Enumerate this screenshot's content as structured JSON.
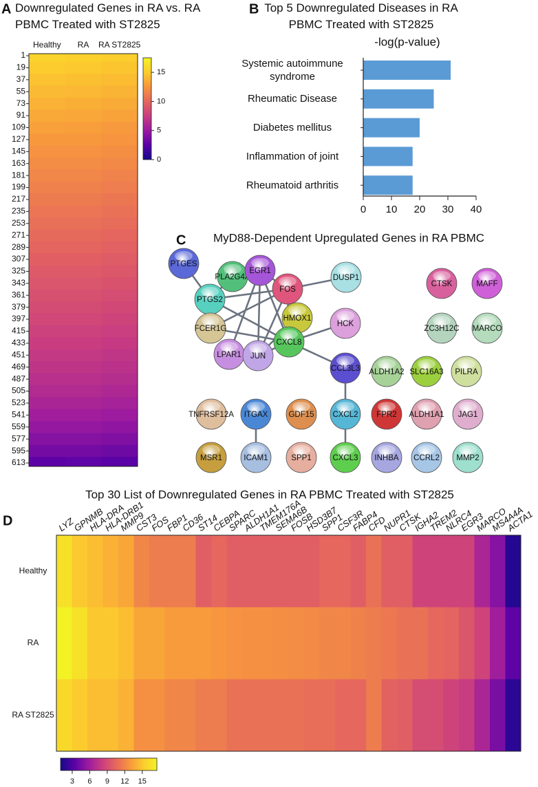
{
  "chart_data": [
    {
      "type": "heatmap",
      "label": "A",
      "title": "Downregulated Genes in RA vs. RA PBMC Treated with ST2825",
      "series": [
        {
          "name": "Healthy",
          "values": [
            15.5,
            15,
            14.6,
            14.2,
            13.8,
            13.4,
            13,
            12.6,
            12.3,
            12,
            11.7,
            11.4,
            11.1,
            10.8,
            10.5,
            10.2,
            9.9,
            9.6,
            9.3,
            9,
            8.7,
            8.4,
            8.1,
            7.8,
            7.5,
            7.2,
            6.9,
            6.6,
            6.2,
            5.8,
            5.3,
            4.8,
            4.2,
            3.5,
            2.6
          ]
        },
        {
          "name": "RA",
          "values": [
            15.3,
            14.9,
            14.5,
            14.1,
            13.7,
            13.3,
            12.9,
            12.6,
            12.3,
            12,
            11.7,
            11.4,
            11.1,
            10.8,
            10.5,
            10.2,
            9.9,
            9.6,
            9.3,
            9,
            8.7,
            8.4,
            8.1,
            7.8,
            7.5,
            7.2,
            6.9,
            6.6,
            6.2,
            5.8,
            5.3,
            4.8,
            4.2,
            3.5,
            2.7
          ]
        },
        {
          "name": "RA ST2825",
          "values": [
            15.2,
            14.7,
            14.3,
            13.9,
            13.5,
            13.1,
            12.7,
            12.4,
            12.1,
            11.8,
            11.5,
            11.2,
            10.9,
            10.6,
            10.3,
            10,
            9.7,
            9.4,
            9.1,
            8.8,
            8.5,
            8.2,
            7.9,
            7.6,
            7.3,
            7,
            6.7,
            6.4,
            6,
            5.6,
            5.1,
            4.6,
            4,
            3.3,
            2.5
          ]
        }
      ],
      "ylim": [
        1,
        613
      ],
      "yticks": [
        1,
        19,
        37,
        55,
        73,
        91,
        109,
        127,
        145,
        163,
        181,
        199,
        217,
        235,
        253,
        271,
        289,
        307,
        325,
        343,
        361,
        379,
        397,
        415,
        433,
        451,
        469,
        487,
        505,
        523,
        541,
        559,
        577,
        595,
        613
      ],
      "zlim": [
        0,
        17.5
      ],
      "zticks": [
        0,
        5,
        10,
        15
      ],
      "colormap": [
        "#150a8c",
        "#5a02a6",
        "#9a1aa0",
        "#c93d80",
        "#e5665e",
        "#f7963e",
        "#fccb2e",
        "#f2f224"
      ]
    },
    {
      "type": "barh",
      "label": "B",
      "title": "Top 5 Downregulated Diseases in RA PBMC Treated with ST2825",
      "xlabel": "-log(p-value)",
      "categories": [
        "Systemic autoimmune syndrome",
        "Rheumatic Disease",
        "Diabetes mellitus",
        "Inflammation of joint",
        "Rheumatoid arthritis"
      ],
      "values": [
        31,
        25,
        20,
        17.5,
        17.5
      ],
      "color": "#5b9bd5",
      "xlim": [
        0,
        40
      ],
      "xticks": [
        0,
        10,
        20,
        30,
        40
      ]
    },
    {
      "type": "heatmap",
      "label": "D",
      "title": "Top 30 List of Downregulated Genes in RA PBMC Treated with ST2825",
      "categories": [
        "LYZ",
        "GPNMB",
        "HLA-DRA",
        "HLA-DRB1",
        "MMP9",
        "CST3",
        "FOS",
        "FBP1",
        "CD36",
        "ST14",
        "CEBPA",
        "SPARC",
        "ALDH1A1",
        "TMEM176A",
        "SEMA6B",
        "FOSB",
        "HSD3B7",
        "SPP1",
        "CSF3R",
        "FABP4",
        "CFD",
        "NUPR1",
        "CTSK",
        "IGHA2",
        "TREM2",
        "NLRC4",
        "EGR3",
        "MARCO",
        "MS4A4A",
        "ACTA1"
      ],
      "series": [
        {
          "name": "Healthy",
          "values": [
            16.5,
            15,
            14.5,
            14,
            13.5,
            12,
            11.5,
            11.5,
            11.5,
            10,
            10.5,
            10,
            10,
            10,
            10,
            10,
            10,
            10.5,
            10.5,
            10,
            11,
            10,
            10,
            8.5,
            8.5,
            8.5,
            8.5,
            6.5,
            5,
            1.5
          ]
        },
        {
          "name": "RA",
          "values": [
            17.5,
            16.5,
            15,
            15,
            14.5,
            13.5,
            13.5,
            13,
            13,
            13,
            12.8,
            12.6,
            12.5,
            12.5,
            12.4,
            12.3,
            12.2,
            12,
            12,
            11.8,
            11.5,
            11.3,
            11,
            11,
            10.5,
            10.3,
            9.5,
            8.5,
            6,
            3.5
          ]
        },
        {
          "name": "RA ST2825",
          "values": [
            16,
            15.2,
            14.5,
            14.5,
            14,
            12.5,
            12.5,
            12,
            12,
            11.5,
            11.5,
            11,
            11,
            11,
            11,
            11,
            10.8,
            10.8,
            10.5,
            10.5,
            11.5,
            10.2,
            10,
            9,
            9,
            8.5,
            8,
            6.5,
            4.5,
            1.8
          ]
        }
      ],
      "zlim": [
        1,
        17.5
      ],
      "zticks": [
        3,
        6,
        9,
        12,
        15
      ],
      "colormap": [
        "#150a8c",
        "#5a02a6",
        "#9a1aa0",
        "#c93d80",
        "#e5665e",
        "#f7963e",
        "#fccb2e",
        "#f2f224"
      ]
    }
  ],
  "network": {
    "label": "C",
    "title": "MyD88-Dependent Upregulated Genes in RA PBMC",
    "nodes": [
      {
        "label": "PTGES",
        "color": "#5a68d8"
      },
      {
        "label": "PLA2G4A",
        "color": "#52c07a"
      },
      {
        "label": "EGR1",
        "color": "#a555d8"
      },
      {
        "label": "FOS",
        "color": "#e0557c"
      },
      {
        "label": "DUSP1",
        "color": "#a8e0e4"
      },
      {
        "label": "CTSK",
        "color": "#d8609c"
      },
      {
        "label": "MAFF",
        "color": "#cf60d8"
      },
      {
        "label": "PTGS2",
        "color": "#58d0c0"
      },
      {
        "label": "HMOX1",
        "color": "#c8c83c"
      },
      {
        "label": "HCK",
        "color": "#dca0dc"
      },
      {
        "label": "ZC3H12C",
        "color": "#b4d4be"
      },
      {
        "label": "MARCO",
        "color": "#b4dcbc"
      },
      {
        "label": "FCER1G",
        "color": "#d6c696"
      },
      {
        "label": "CXCL8",
        "color": "#56c65c"
      },
      {
        "label": "LPAR1",
        "color": "#c68ee0"
      },
      {
        "label": "JUN",
        "color": "#c0a6e6"
      },
      {
        "label": "CCL3L3",
        "color": "#5c4ed0"
      },
      {
        "label": "ALDH1A2",
        "color": "#a6d298"
      },
      {
        "label": "SLC16A3",
        "color": "#9ccf3e"
      },
      {
        "label": "PILRA",
        "color": "#cfdf9e"
      },
      {
        "label": "TNFRSF12A",
        "color": "#dfbe9e"
      },
      {
        "label": "ITGAX",
        "color": "#4a88d6"
      },
      {
        "label": "GDF15",
        "color": "#de8e4e"
      },
      {
        "label": "CXCL2",
        "color": "#56b6d6"
      },
      {
        "label": "FPR2",
        "color": "#cf3636"
      },
      {
        "label": "ALDH1A1",
        "color": "#dfa0b0"
      },
      {
        "label": "JAG1",
        "color": "#dfaece"
      },
      {
        "label": "MSR1",
        "color": "#c69e3e"
      },
      {
        "label": "ICAM1",
        "color": "#a6bee0"
      },
      {
        "label": "SPP1",
        "color": "#e6ae9e"
      },
      {
        "label": "CXCL3",
        "color": "#5ece4e"
      },
      {
        "label": "INHBA",
        "color": "#a6a6e0"
      },
      {
        "label": "CCRL2",
        "color": "#a6c6e6"
      },
      {
        "label": "MMP2",
        "color": "#9edfce"
      }
    ]
  }
}
